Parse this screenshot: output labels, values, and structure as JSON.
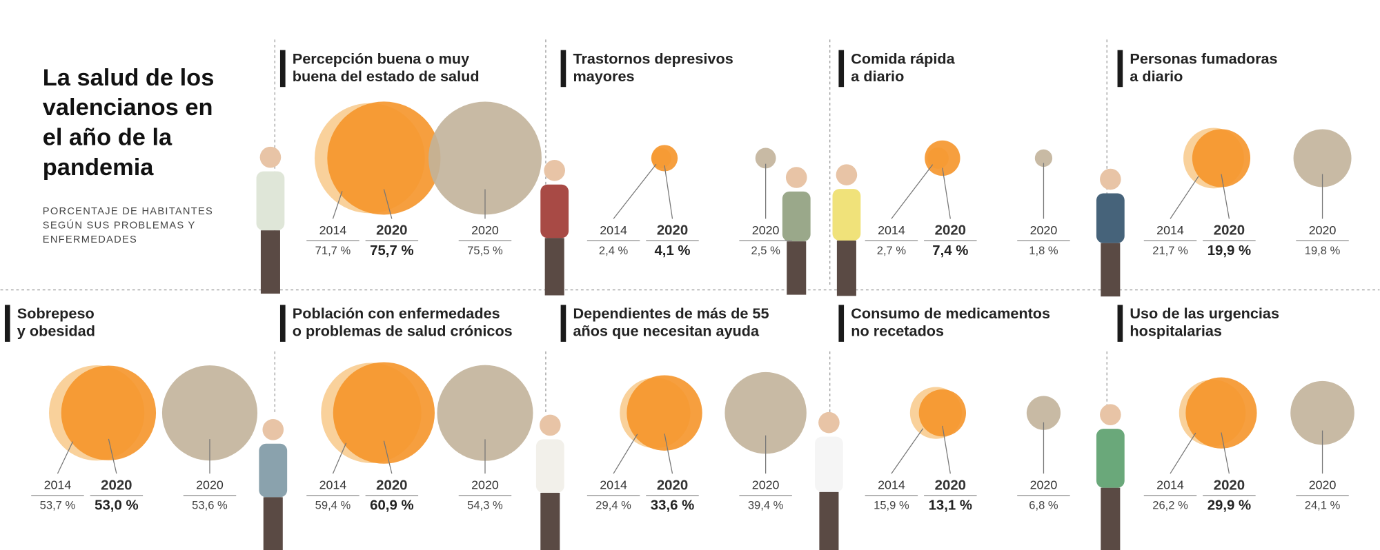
{
  "title": [
    "La salud de los",
    "valencianos en",
    "el año de la",
    "pandemia"
  ],
  "subtitle": [
    "PORCENTAJE DE HABITANTES",
    "SEGÚN SUS PROBLEMAS Y",
    "ENFERMEDADES"
  ],
  "panels": [
    {
      "title": [
        "Percepción buena o muy",
        "buena del estado de salud"
      ],
      "items": [
        {
          "year": "2014",
          "value": 71.7,
          "label": "71,7 %"
        },
        {
          "year": "2020",
          "value": 75.7,
          "label": "75,7 %"
        },
        {
          "year": "2020",
          "value": 75.5,
          "label": "75,5 %"
        }
      ]
    },
    {
      "title": [
        "Trastornos depresivos",
        "mayores"
      ],
      "items": [
        {
          "year": "2014",
          "value": 2.4,
          "label": "2,4 %"
        },
        {
          "year": "2020",
          "value": 4.1,
          "label": "4,1 %"
        },
        {
          "year": "2020",
          "value": 2.5,
          "label": "2,5 %"
        }
      ]
    },
    {
      "title": [
        "Comida rápida",
        "a diario"
      ],
      "items": [
        {
          "year": "2014",
          "value": 2.7,
          "label": "2,7 %"
        },
        {
          "year": "2020",
          "value": 7.4,
          "label": "7,4 %"
        },
        {
          "year": "2020",
          "value": 1.8,
          "label": "1,8 %"
        }
      ]
    },
    {
      "title": [
        "Personas fumadoras",
        "a diario"
      ],
      "items": [
        {
          "year": "2014",
          "value": 21.7,
          "label": "21,7 %"
        },
        {
          "year": "2020",
          "value": 19.9,
          "label": "19,9 %"
        },
        {
          "year": "2020",
          "value": 19.8,
          "label": "19,8 %"
        }
      ]
    },
    {
      "title": [
        "Sobrepeso",
        "y obesidad"
      ],
      "items": [
        {
          "year": "2014",
          "value": 53.7,
          "label": "53,7 %"
        },
        {
          "year": "2020",
          "value": 53.0,
          "label": "53,0 %"
        },
        {
          "year": "2020",
          "value": 53.6,
          "label": "53,6 %"
        }
      ]
    },
    {
      "title": [
        "Población con enfermedades",
        "o problemas de salud crónicos"
      ],
      "items": [
        {
          "year": "2014",
          "value": 59.4,
          "label": "59,4 %"
        },
        {
          "year": "2020",
          "value": 60.9,
          "label": "60,9 %"
        },
        {
          "year": "2020",
          "value": 54.3,
          "label": "54,3 %"
        }
      ]
    },
    {
      "title": [
        "Dependientes de más de 55",
        "años que necesitan ayuda"
      ],
      "items": [
        {
          "year": "2014",
          "value": 29.4,
          "label": "29,4 %"
        },
        {
          "year": "2020",
          "value": 33.6,
          "label": "33,6 %"
        },
        {
          "year": "2020",
          "value": 39.4,
          "label": "39,4 %"
        }
      ]
    },
    {
      "title": [
        "Consumo de medicamentos",
        "no recetados"
      ],
      "items": [
        {
          "year": "2014",
          "value": 15.9,
          "label": "15,9 %"
        },
        {
          "year": "2020",
          "value": 13.1,
          "label": "13,1 %"
        },
        {
          "year": "2020",
          "value": 6.8,
          "label": "6,8 %"
        }
      ]
    },
    {
      "title": [
        "Uso de las urgencias",
        "hospitalarias"
      ],
      "items": [
        {
          "year": "2014",
          "value": 26.2,
          "label": "26,2 %"
        },
        {
          "year": "2020",
          "value": 29.9,
          "label": "29,9 %"
        },
        {
          "year": "2020",
          "value": 24.1,
          "label": "24,1 %"
        }
      ]
    }
  ]
}
